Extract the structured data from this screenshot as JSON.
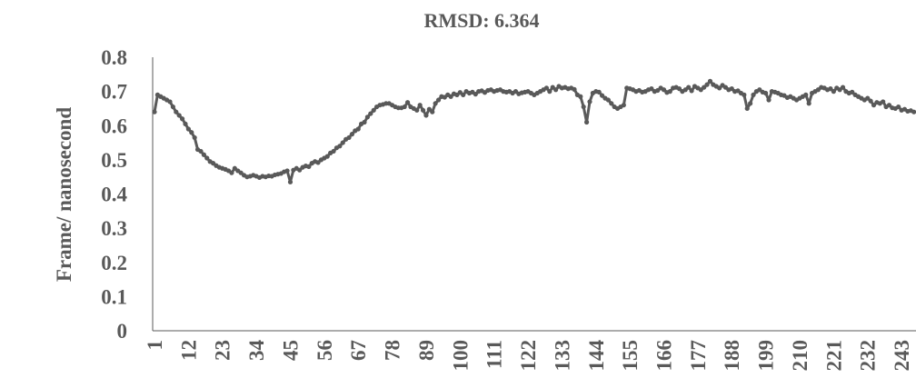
{
  "chart_data": {
    "type": "line",
    "title": "RMSD: 6.364",
    "xlabel": "",
    "ylabel": "Frame/ nanosecond",
    "ylim": [
      0,
      0.8
    ],
    "yticks": [
      "0",
      "0.1",
      "0.2",
      "0.3",
      "0.4",
      "0.5",
      "0.6",
      "0.7",
      "0.8"
    ],
    "xticks": [
      "1",
      "12",
      "23",
      "34",
      "45",
      "56",
      "67",
      "78",
      "89",
      "100",
      "111",
      "122",
      "133",
      "144",
      "155",
      "166",
      "177",
      "188",
      "199",
      "210",
      "221",
      "232",
      "243"
    ],
    "grid": false,
    "legend": "none",
    "line_color": "#595959",
    "marker": "circle",
    "x_start": 1,
    "values": [
      0.64,
      0.69,
      0.685,
      0.68,
      0.675,
      0.67,
      0.655,
      0.64,
      0.63,
      0.62,
      0.605,
      0.59,
      0.58,
      0.565,
      0.53,
      0.525,
      0.515,
      0.505,
      0.495,
      0.49,
      0.483,
      0.478,
      0.475,
      0.472,
      0.468,
      0.462,
      0.475,
      0.468,
      0.462,
      0.455,
      0.45,
      0.452,
      0.455,
      0.452,
      0.448,
      0.452,
      0.45,
      0.453,
      0.452,
      0.456,
      0.458,
      0.46,
      0.465,
      0.468,
      0.435,
      0.47,
      0.475,
      0.47,
      0.478,
      0.482,
      0.48,
      0.49,
      0.495,
      0.492,
      0.5,
      0.505,
      0.51,
      0.52,
      0.525,
      0.535,
      0.54,
      0.55,
      0.56,
      0.565,
      0.575,
      0.585,
      0.59,
      0.605,
      0.61,
      0.625,
      0.635,
      0.645,
      0.655,
      0.66,
      0.662,
      0.665,
      0.665,
      0.66,
      0.655,
      0.652,
      0.652,
      0.655,
      0.668,
      0.655,
      0.65,
      0.645,
      0.66,
      0.645,
      0.63,
      0.648,
      0.64,
      0.665,
      0.675,
      0.685,
      0.683,
      0.69,
      0.685,
      0.693,
      0.69,
      0.697,
      0.69,
      0.7,
      0.695,
      0.698,
      0.692,
      0.7,
      0.702,
      0.697,
      0.703,
      0.705,
      0.7,
      0.703,
      0.705,
      0.7,
      0.698,
      0.7,
      0.695,
      0.7,
      0.693,
      0.696,
      0.698,
      0.7,
      0.695,
      0.69,
      0.695,
      0.7,
      0.705,
      0.71,
      0.7,
      0.712,
      0.705,
      0.715,
      0.71,
      0.712,
      0.708,
      0.71,
      0.706,
      0.69,
      0.685,
      0.655,
      0.61,
      0.67,
      0.695,
      0.7,
      0.698,
      0.688,
      0.68,
      0.675,
      0.665,
      0.655,
      0.65,
      0.655,
      0.66,
      0.71,
      0.708,
      0.705,
      0.7,
      0.703,
      0.698,
      0.7,
      0.705,
      0.708,
      0.7,
      0.703,
      0.71,
      0.705,
      0.697,
      0.7,
      0.71,
      0.712,
      0.708,
      0.7,
      0.705,
      0.712,
      0.702,
      0.715,
      0.71,
      0.705,
      0.712,
      0.72,
      0.73,
      0.72,
      0.715,
      0.71,
      0.718,
      0.712,
      0.705,
      0.708,
      0.7,
      0.702,
      0.695,
      0.69,
      0.65,
      0.665,
      0.69,
      0.7,
      0.705,
      0.698,
      0.695,
      0.675,
      0.7,
      0.698,
      0.695,
      0.69,
      0.688,
      0.682,
      0.685,
      0.68,
      0.675,
      0.68,
      0.685,
      0.69,
      0.665,
      0.695,
      0.7,
      0.705,
      0.712,
      0.71,
      0.705,
      0.708,
      0.7,
      0.71,
      0.705,
      0.712,
      0.7,
      0.695,
      0.698,
      0.69,
      0.685,
      0.68,
      0.675,
      0.68,
      0.672,
      0.66,
      0.668,
      0.665,
      0.67,
      0.655,
      0.66,
      0.652,
      0.65,
      0.655,
      0.645,
      0.648,
      0.642,
      0.644,
      0.64
    ]
  }
}
